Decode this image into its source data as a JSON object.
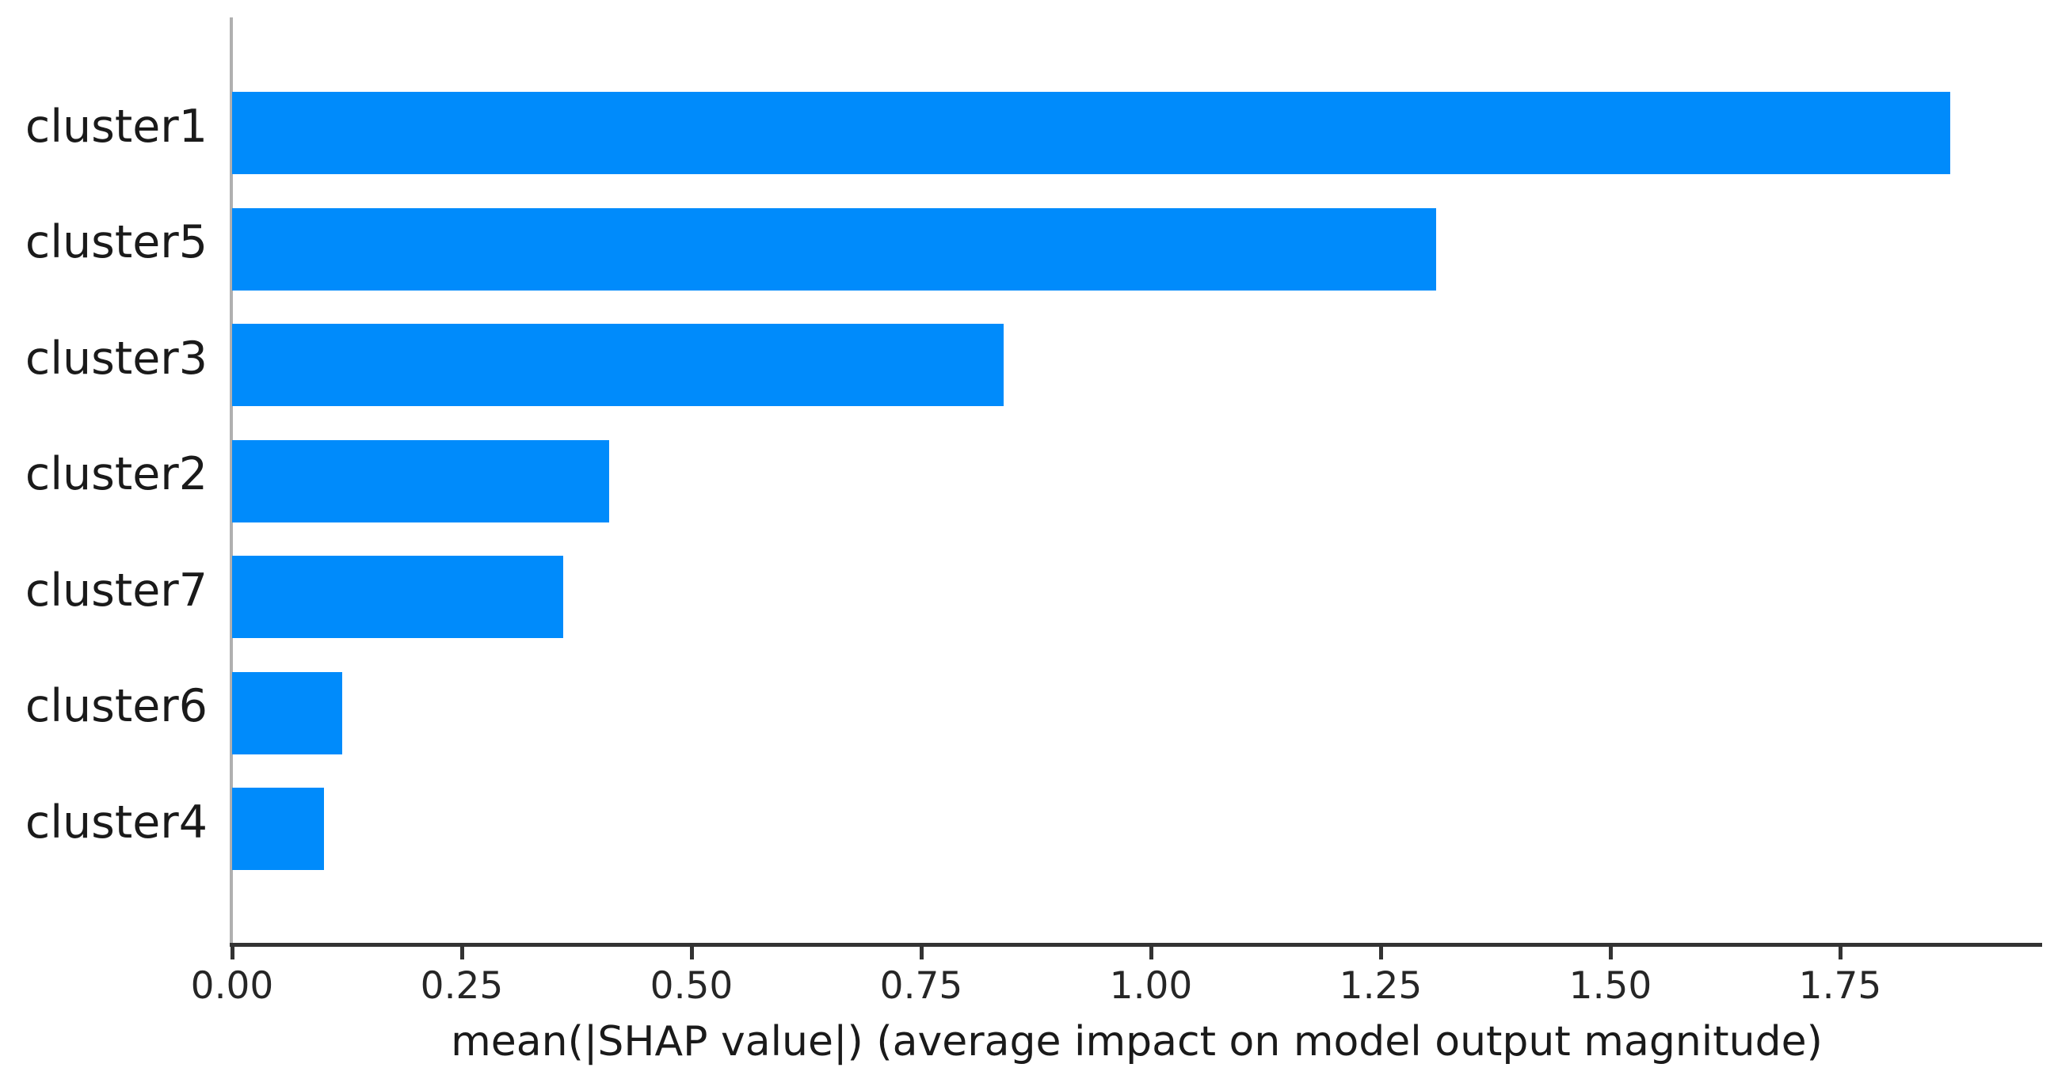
{
  "chart_data": {
    "type": "bar",
    "orientation": "horizontal",
    "title": "",
    "xlabel": "mean(|SHAP value|) (average impact on model output magnitude)",
    "ylabel": "",
    "categories": [
      "cluster1",
      "cluster5",
      "cluster3",
      "cluster2",
      "cluster7",
      "cluster6",
      "cluster4"
    ],
    "values": [
      1.87,
      1.31,
      0.84,
      0.41,
      0.36,
      0.12,
      0.1
    ],
    "x_tick_values": [
      0.0,
      0.25,
      0.5,
      0.75,
      1.0,
      1.25,
      1.5,
      1.75
    ],
    "x_tick_labels": [
      "0.00",
      "0.25",
      "0.50",
      "0.75",
      "1.00",
      "1.25",
      "1.50",
      "1.75"
    ],
    "xlim": [
      0,
      1.97
    ],
    "grid": false,
    "legend": false,
    "colors": {
      "bar": "#008bfb",
      "zero_line": "#b0b0b0",
      "axis": "#333333",
      "tick_text": "#262626",
      "label_text": "#1a1a1a"
    }
  }
}
